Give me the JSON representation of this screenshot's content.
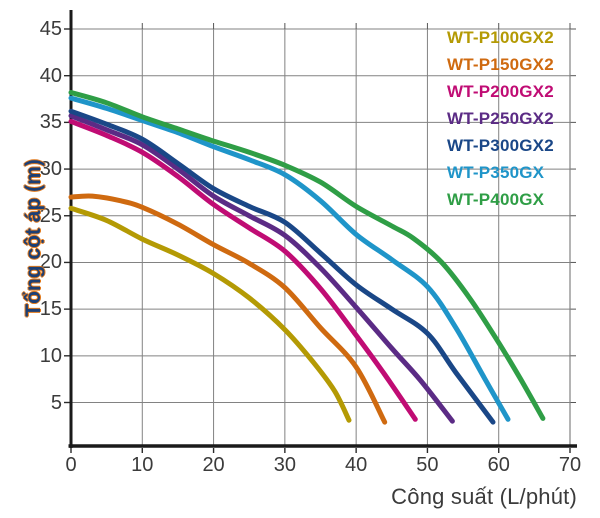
{
  "chart_data": {
    "type": "line",
    "title": "",
    "xlabel": "Công suất (L/phút)",
    "ylabel": "Tổng cột áp (m)",
    "xlim": [
      0,
      70.3
    ],
    "ylim": [
      0.4,
      45.4
    ],
    "x_ticks": [
      0,
      10,
      20,
      30,
      40,
      50,
      60,
      70
    ],
    "y_ticks": [
      5,
      10,
      15,
      20,
      25,
      30,
      35,
      40,
      45
    ],
    "grid": true,
    "grid_color": "#828282",
    "axis_color": "#1a1a1a",
    "legend_position": "top-right-inside",
    "series": [
      {
        "name": "WT-P100GX2",
        "color": "#b49a04",
        "points": [
          [
            0,
            25.8
          ],
          [
            5,
            24.5
          ],
          [
            10,
            22.5
          ],
          [
            15,
            20.8
          ],
          [
            20,
            18.8
          ],
          [
            25,
            16.2
          ],
          [
            30,
            12.8
          ],
          [
            34,
            9.3
          ],
          [
            37,
            6.2
          ],
          [
            39,
            3.1
          ]
        ]
      },
      {
        "name": "WT-P150GX2",
        "color": "#cf6a10",
        "points": [
          [
            0,
            27.0
          ],
          [
            3,
            27.1
          ],
          [
            7,
            26.6
          ],
          [
            10,
            25.9
          ],
          [
            15,
            24.1
          ],
          [
            20,
            21.9
          ],
          [
            25,
            19.9
          ],
          [
            30,
            17.3
          ],
          [
            35,
            13.0
          ],
          [
            40,
            8.8
          ],
          [
            44,
            2.9
          ]
        ]
      },
      {
        "name": "WT-P200GX2",
        "color": "#c00c74",
        "points": [
          [
            0,
            35.1
          ],
          [
            5,
            33.6
          ],
          [
            10,
            31.8
          ],
          [
            15,
            29.2
          ],
          [
            20,
            26.2
          ],
          [
            25,
            23.7
          ],
          [
            30,
            21.2
          ],
          [
            35,
            17.2
          ],
          [
            40,
            12.2
          ],
          [
            44,
            8.0
          ],
          [
            48.3,
            3.2
          ]
        ]
      },
      {
        "name": "WT-P250GX2",
        "color": "#5b2b85",
        "points": [
          [
            0,
            35.7
          ],
          [
            5,
            34.2
          ],
          [
            10,
            32.6
          ],
          [
            15,
            30.0
          ],
          [
            20,
            27.1
          ],
          [
            25,
            25.0
          ],
          [
            30,
            22.9
          ],
          [
            35,
            19.4
          ],
          [
            40,
            15.2
          ],
          [
            45,
            10.8
          ],
          [
            49,
            7.4
          ],
          [
            53.5,
            3.0
          ]
        ]
      },
      {
        "name": "WT-P300GX2",
        "color": "#1a4787",
        "points": [
          [
            0,
            36.2
          ],
          [
            5,
            34.8
          ],
          [
            10,
            33.2
          ],
          [
            15,
            30.6
          ],
          [
            20,
            27.9
          ],
          [
            25,
            26.0
          ],
          [
            30,
            24.3
          ],
          [
            35,
            21.0
          ],
          [
            40,
            17.6
          ],
          [
            45,
            15.0
          ],
          [
            50,
            12.4
          ],
          [
            54,
            8.2
          ],
          [
            59.2,
            2.9
          ]
        ]
      },
      {
        "name": "WT-P350GX",
        "color": "#1f95c9",
        "points": [
          [
            0,
            37.6
          ],
          [
            5,
            36.5
          ],
          [
            10,
            35.2
          ],
          [
            15,
            33.9
          ],
          [
            20,
            32.4
          ],
          [
            25,
            31.0
          ],
          [
            30,
            29.4
          ],
          [
            35,
            26.6
          ],
          [
            40,
            23.0
          ],
          [
            45,
            20.3
          ],
          [
            50,
            17.4
          ],
          [
            54,
            13.0
          ],
          [
            58,
            7.6
          ],
          [
            61.3,
            3.2
          ]
        ]
      },
      {
        "name": "WT-P400GX",
        "color": "#2f9e46",
        "points": [
          [
            0,
            38.2
          ],
          [
            5,
            37.1
          ],
          [
            10,
            35.6
          ],
          [
            15,
            34.3
          ],
          [
            20,
            33.0
          ],
          [
            25,
            31.8
          ],
          [
            30,
            30.4
          ],
          [
            35,
            28.6
          ],
          [
            40,
            26.0
          ],
          [
            45,
            23.9
          ],
          [
            48,
            22.6
          ],
          [
            52,
            20.0
          ],
          [
            56,
            16.1
          ],
          [
            60,
            11.4
          ],
          [
            63,
            7.6
          ],
          [
            66.2,
            3.3
          ]
        ]
      }
    ]
  }
}
